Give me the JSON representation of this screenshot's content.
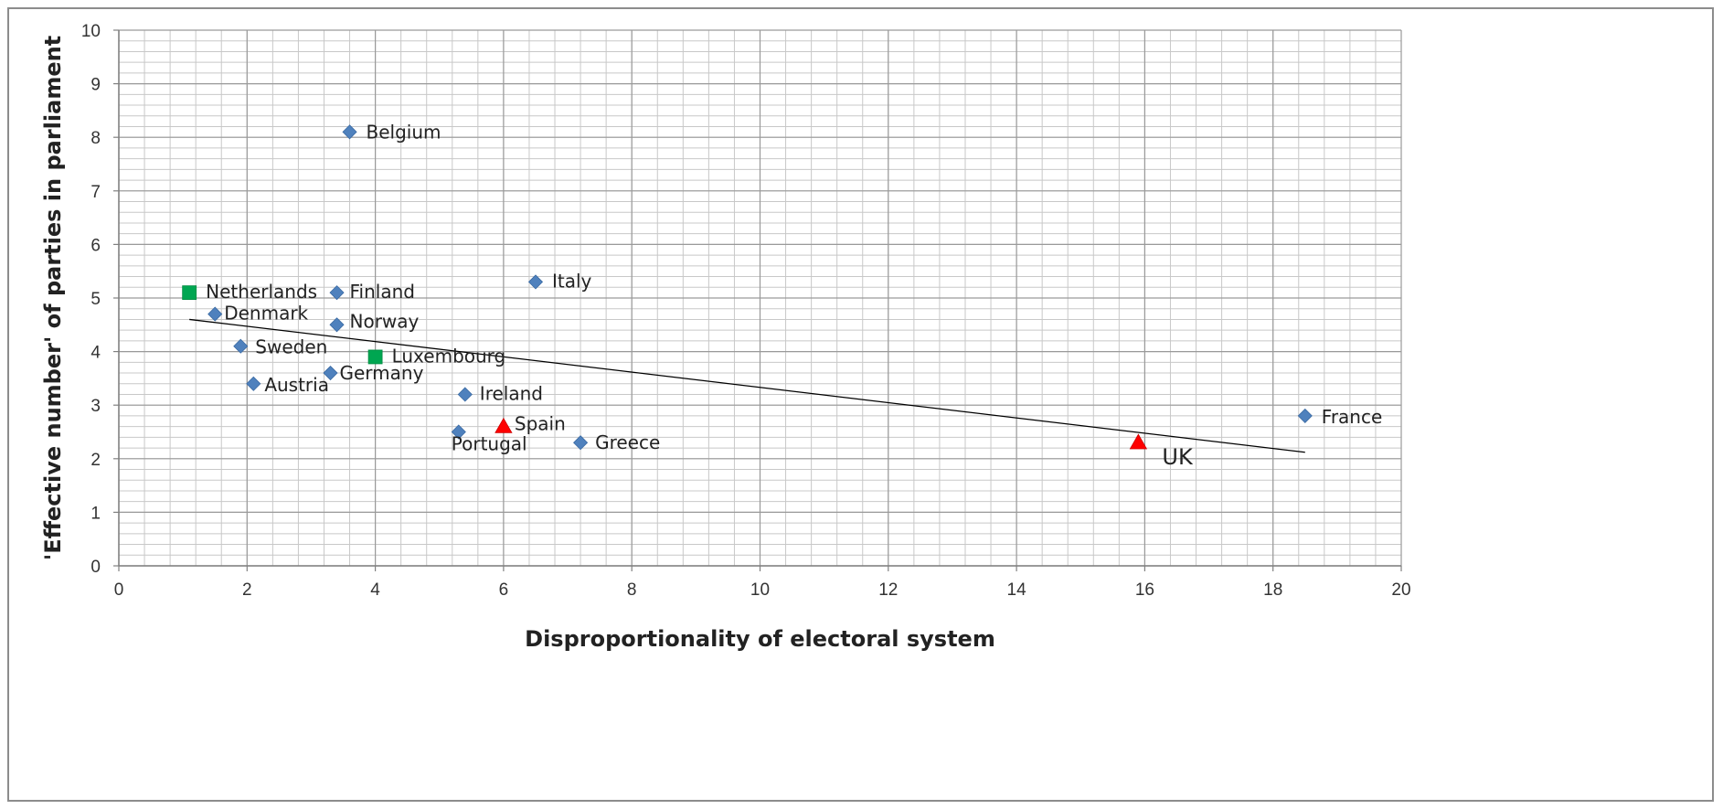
{
  "chart_data": {
    "type": "scatter",
    "xlabel": "Disproportionality of electoral system",
    "ylabel": "'Effective number' of parties in parliament",
    "xlim": [
      0,
      20
    ],
    "ylim": [
      0,
      10
    ],
    "xticks": [
      0,
      2,
      4,
      6,
      8,
      10,
      12,
      14,
      16,
      18,
      20
    ],
    "yticks": [
      0,
      1,
      2,
      3,
      4,
      5,
      6,
      7,
      8,
      9,
      10
    ],
    "grid": true,
    "legend": "none",
    "colors": {
      "diamond": "#4f81bd",
      "square": "#00a651",
      "triangle": "#ff0000",
      "trendline": "#000000"
    },
    "points": [
      {
        "label": "Belgium",
        "x": 3.6,
        "y": 8.1,
        "marker": "diamond"
      },
      {
        "label": "Netherlands",
        "x": 1.1,
        "y": 5.1,
        "marker": "square"
      },
      {
        "label": "Finland",
        "x": 3.4,
        "y": 5.1,
        "marker": "diamond"
      },
      {
        "label": "Italy",
        "x": 6.5,
        "y": 5.3,
        "marker": "diamond"
      },
      {
        "label": "Denmark",
        "x": 1.5,
        "y": 4.7,
        "marker": "diamond"
      },
      {
        "label": "Norway",
        "x": 3.4,
        "y": 4.5,
        "marker": "diamond"
      },
      {
        "label": "Sweden",
        "x": 1.9,
        "y": 4.1,
        "marker": "diamond"
      },
      {
        "label": "Luxembourg",
        "x": 4.0,
        "y": 3.9,
        "marker": "square"
      },
      {
        "label": "Germany",
        "x": 3.3,
        "y": 3.6,
        "marker": "diamond"
      },
      {
        "label": "Austria",
        "x": 2.1,
        "y": 3.4,
        "marker": "diamond"
      },
      {
        "label": "Ireland",
        "x": 5.4,
        "y": 3.2,
        "marker": "diamond"
      },
      {
        "label": "Spain",
        "x": 6.0,
        "y": 2.6,
        "marker": "triangle"
      },
      {
        "label": "Portugal",
        "x": 5.3,
        "y": 2.5,
        "marker": "diamond"
      },
      {
        "label": "Greece",
        "x": 7.2,
        "y": 2.3,
        "marker": "diamond"
      },
      {
        "label": "UK",
        "x": 15.9,
        "y": 2.3,
        "marker": "triangle"
      },
      {
        "label": "France",
        "x": 18.5,
        "y": 2.8,
        "marker": "diamond"
      }
    ],
    "trendline": {
      "x": [
        1.1,
        18.5
      ],
      "y": [
        4.6,
        2.12
      ]
    }
  }
}
